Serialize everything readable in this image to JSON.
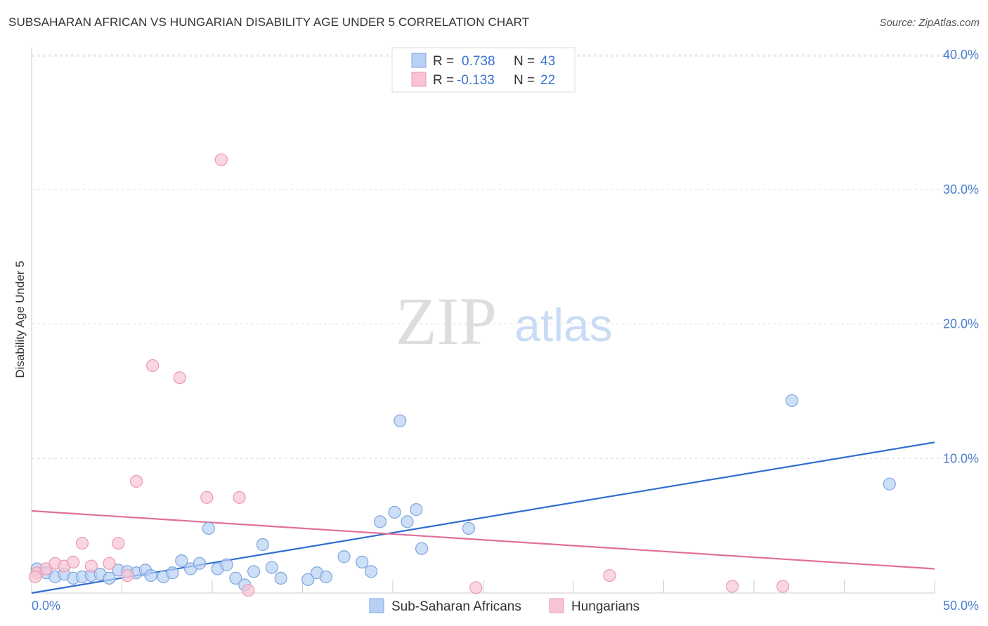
{
  "title": "SUBSAHARAN AFRICAN VS HUNGARIAN DISABILITY AGE UNDER 5 CORRELATION CHART",
  "source": "Source: ZipAtlas.com",
  "watermark": {
    "zip": "ZIP",
    "atlas": "atlas"
  },
  "colors": {
    "blue_fill": "#b8d0f3",
    "blue_stroke": "#7ea6e0",
    "blue_line": "#2f6fd0",
    "pink_fill": "#f8c4d3",
    "pink_stroke": "#ea9ab2",
    "pink_line": "#e26f98",
    "tick": "#4a7fcf",
    "grid": "#dddddd"
  },
  "chart_data": {
    "type": "scatter",
    "title": "SUBSAHARAN AFRICAN VS HUNGARIAN DISABILITY AGE UNDER 5 CORRELATION CHART",
    "xlabel": "",
    "ylabel": "Disability Age Under 5",
    "xlim": [
      0,
      50
    ],
    "ylim": [
      0,
      40
    ],
    "x_tick_labels": [
      "0.0%",
      "50.0%"
    ],
    "y_ticks": [
      10,
      20,
      30,
      40
    ],
    "y_tick_labels": [
      "10.0%",
      "20.0%",
      "30.0%",
      "40.0%"
    ],
    "grid": true,
    "legend": [
      {
        "r_label": "R =",
        "r_value": "0.738",
        "n_label": "N =",
        "n_value": "43"
      },
      {
        "r_label": "R =",
        "r_value": "-0.133",
        "n_label": "N =",
        "n_value": "22"
      }
    ],
    "series": [
      {
        "name": "Sub-Saharan Africans",
        "color": "blue",
        "points": [
          [
            0.3,
            1.8
          ],
          [
            0.8,
            1.5
          ],
          [
            1.3,
            1.2
          ],
          [
            1.8,
            1.4
          ],
          [
            2.3,
            1.1
          ],
          [
            2.8,
            1.2
          ],
          [
            3.3,
            1.3
          ],
          [
            3.8,
            1.4
          ],
          [
            4.3,
            1.1
          ],
          [
            4.8,
            1.7
          ],
          [
            5.3,
            1.6
          ],
          [
            5.8,
            1.5
          ],
          [
            6.3,
            1.7
          ],
          [
            6.6,
            1.3
          ],
          [
            7.3,
            1.2
          ],
          [
            7.8,
            1.5
          ],
          [
            8.3,
            2.4
          ],
          [
            8.8,
            1.8
          ],
          [
            9.3,
            2.2
          ],
          [
            9.8,
            4.8
          ],
          [
            10.3,
            1.8
          ],
          [
            10.8,
            2.1
          ],
          [
            11.3,
            1.1
          ],
          [
            11.8,
            0.6
          ],
          [
            12.3,
            1.6
          ],
          [
            12.8,
            3.6
          ],
          [
            13.3,
            1.9
          ],
          [
            13.8,
            1.1
          ],
          [
            15.3,
            1.0
          ],
          [
            15.8,
            1.5
          ],
          [
            16.3,
            1.2
          ],
          [
            17.3,
            2.7
          ],
          [
            18.3,
            2.3
          ],
          [
            18.8,
            1.6
          ],
          [
            19.3,
            5.3
          ],
          [
            20.1,
            6.0
          ],
          [
            20.4,
            12.8
          ],
          [
            20.8,
            5.3
          ],
          [
            21.3,
            6.2
          ],
          [
            21.6,
            3.3
          ],
          [
            24.2,
            4.8
          ],
          [
            42.1,
            14.3
          ],
          [
            47.5,
            8.1
          ]
        ],
        "trend": {
          "x": [
            0,
            50
          ],
          "y": [
            0.0,
            11.2
          ]
        }
      },
      {
        "name": "Hungarians",
        "color": "pink",
        "points": [
          [
            0.3,
            1.5
          ],
          [
            0.8,
            1.8
          ],
          [
            1.3,
            2.2
          ],
          [
            1.8,
            2.0
          ],
          [
            2.3,
            2.3
          ],
          [
            2.8,
            3.7
          ],
          [
            3.3,
            2.0
          ],
          [
            4.3,
            2.2
          ],
          [
            4.8,
            3.7
          ],
          [
            5.3,
            1.3
          ],
          [
            5.8,
            8.3
          ],
          [
            6.7,
            16.9
          ],
          [
            8.2,
            16.0
          ],
          [
            9.7,
            7.1
          ],
          [
            10.5,
            32.2
          ],
          [
            11.5,
            7.1
          ],
          [
            12.0,
            0.2
          ],
          [
            24.6,
            0.4
          ],
          [
            32.0,
            1.3
          ],
          [
            38.8,
            0.5
          ],
          [
            41.6,
            0.5
          ],
          [
            0.2,
            1.2
          ]
        ],
        "trend": {
          "x": [
            0,
            50
          ],
          "y": [
            6.1,
            1.8
          ]
        }
      }
    ]
  }
}
